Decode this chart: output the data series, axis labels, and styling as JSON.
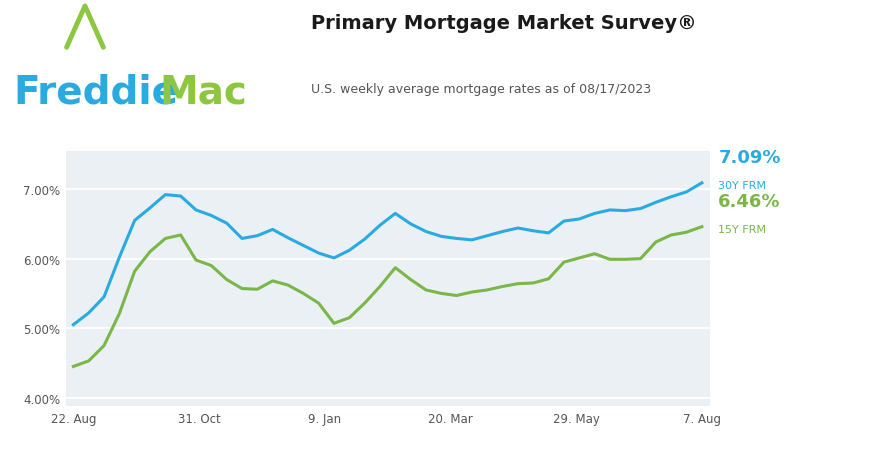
{
  "title": "Primary Mortgage Market Survey®",
  "subtitle": "U.S. weekly average mortgage rates as of 08/17/2023",
  "freddie_blue": "#29ABE2",
  "freddie_green": "#8DC63F",
  "line_blue": "#29ABE2",
  "line_green": "#7AB648",
  "bg_color": "#FFFFFF",
  "plot_bg": "#EBF0F5",
  "rate_30y_label": "7.09%",
  "rate_15y_label": "6.46%",
  "frm_30y": "30Y FRM",
  "frm_15y": "15Y FRM",
  "x_labels": [
    "22. Aug",
    "31. Oct",
    "9. Jan",
    "20. Mar",
    "29. May",
    "7. Aug"
  ],
  "ylim": [
    3.88,
    7.55
  ],
  "yticks": [
    4.0,
    5.0,
    6.0,
    7.0
  ],
  "rate_30y": [
    5.05,
    5.22,
    5.45,
    6.02,
    6.55,
    6.73,
    6.92,
    6.9,
    6.7,
    6.62,
    6.51,
    6.29,
    6.33,
    6.42,
    6.3,
    6.19,
    6.08,
    6.01,
    6.12,
    6.28,
    6.48,
    6.65,
    6.5,
    6.39,
    6.32,
    6.29,
    6.27,
    6.33,
    6.39,
    6.44,
    6.4,
    6.37,
    6.54,
    6.57,
    6.65,
    6.7,
    6.69,
    6.72,
    6.81,
    6.89,
    6.96,
    7.09
  ],
  "rate_15y": [
    4.45,
    4.53,
    4.75,
    5.21,
    5.82,
    6.1,
    6.29,
    6.34,
    5.98,
    5.9,
    5.7,
    5.57,
    5.56,
    5.68,
    5.62,
    5.5,
    5.36,
    5.07,
    5.15,
    5.36,
    5.6,
    5.87,
    5.7,
    5.55,
    5.5,
    5.47,
    5.52,
    5.55,
    5.6,
    5.64,
    5.65,
    5.71,
    5.95,
    6.01,
    6.07,
    5.99,
    5.99,
    6.0,
    6.24,
    6.34,
    6.38,
    6.46
  ],
  "n_points": 42
}
